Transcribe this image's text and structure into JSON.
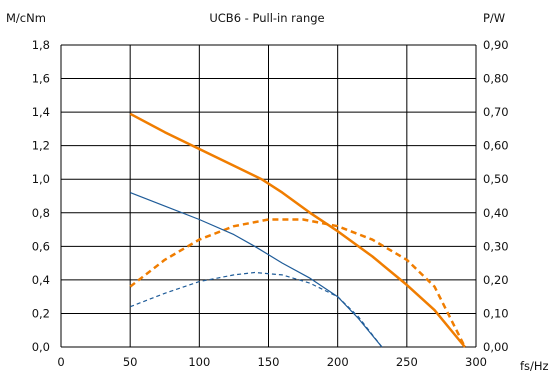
{
  "chart_data": {
    "type": "line",
    "title": "UCB6 - Pull-in range",
    "xlabel": "fs/Hz",
    "ylabel_left": "M/cNm",
    "ylabel_right": "P/W",
    "xlim": [
      0,
      300
    ],
    "ylim_left": [
      0,
      1.8
    ],
    "ylim_right": [
      0,
      0.9
    ],
    "grid": true,
    "x_ticks": [
      0,
      50,
      100,
      150,
      200,
      250,
      300
    ],
    "x_tick_labels": [
      "0",
      "50",
      "100",
      "150",
      "200",
      "250",
      "300"
    ],
    "y_left_ticks": [
      0,
      0.2,
      0.4,
      0.6,
      0.8,
      1.0,
      1.2,
      1.4,
      1.6,
      1.8
    ],
    "y_left_tick_labels": [
      "0,0",
      "0,2",
      "0,4",
      "0,6",
      "0,8",
      "1,0",
      "1,2",
      "1,4",
      "1,6",
      "1,8"
    ],
    "y_right_ticks": [
      0,
      0.1,
      0.2,
      0.3,
      0.4,
      0.5,
      0.6,
      0.7,
      0.8,
      0.9
    ],
    "y_right_tick_labels": [
      "0,00",
      "0,10",
      "0,20",
      "0,30",
      "0,40",
      "0,50",
      "0,60",
      "0,70",
      "0,80",
      "0,90"
    ],
    "series": [
      {
        "axis": "left",
        "color": "#f07d00",
        "style": "solid",
        "width": 2.5,
        "points": [
          [
            50,
            1.39
          ],
          [
            75,
            1.28
          ],
          [
            100,
            1.18
          ],
          [
            125,
            1.08
          ],
          [
            145,
            1.0
          ],
          [
            160,
            0.92
          ],
          [
            180,
            0.8
          ],
          [
            200,
            0.69
          ],
          [
            225,
            0.54
          ],
          [
            250,
            0.37
          ],
          [
            270,
            0.22
          ],
          [
            292,
            0.0
          ]
        ]
      },
      {
        "axis": "right",
        "color": "#f07d00",
        "style": "dashed",
        "width": 2.5,
        "points": [
          [
            50,
            0.18
          ],
          [
            75,
            0.26
          ],
          [
            100,
            0.32
          ],
          [
            125,
            0.36
          ],
          [
            150,
            0.38
          ],
          [
            175,
            0.38
          ],
          [
            200,
            0.36
          ],
          [
            225,
            0.32
          ],
          [
            250,
            0.26
          ],
          [
            270,
            0.18
          ],
          [
            292,
            0.0
          ]
        ]
      },
      {
        "axis": "left",
        "color": "#1f5c99",
        "style": "solid",
        "width": 1.2,
        "points": [
          [
            50,
            0.92
          ],
          [
            75,
            0.84
          ],
          [
            100,
            0.76
          ],
          [
            125,
            0.67
          ],
          [
            140,
            0.6
          ],
          [
            160,
            0.5
          ],
          [
            180,
            0.41
          ],
          [
            200,
            0.3
          ],
          [
            215,
            0.17
          ],
          [
            232,
            0.0
          ]
        ]
      },
      {
        "axis": "right",
        "color": "#1f5c99",
        "style": "dashed",
        "width": 1.2,
        "points": [
          [
            50,
            0.12
          ],
          [
            75,
            0.16
          ],
          [
            100,
            0.195
          ],
          [
            125,
            0.215
          ],
          [
            140,
            0.222
          ],
          [
            160,
            0.215
          ],
          [
            180,
            0.19
          ],
          [
            200,
            0.15
          ],
          [
            215,
            0.09
          ],
          [
            232,
            0.0
          ]
        ]
      }
    ]
  }
}
